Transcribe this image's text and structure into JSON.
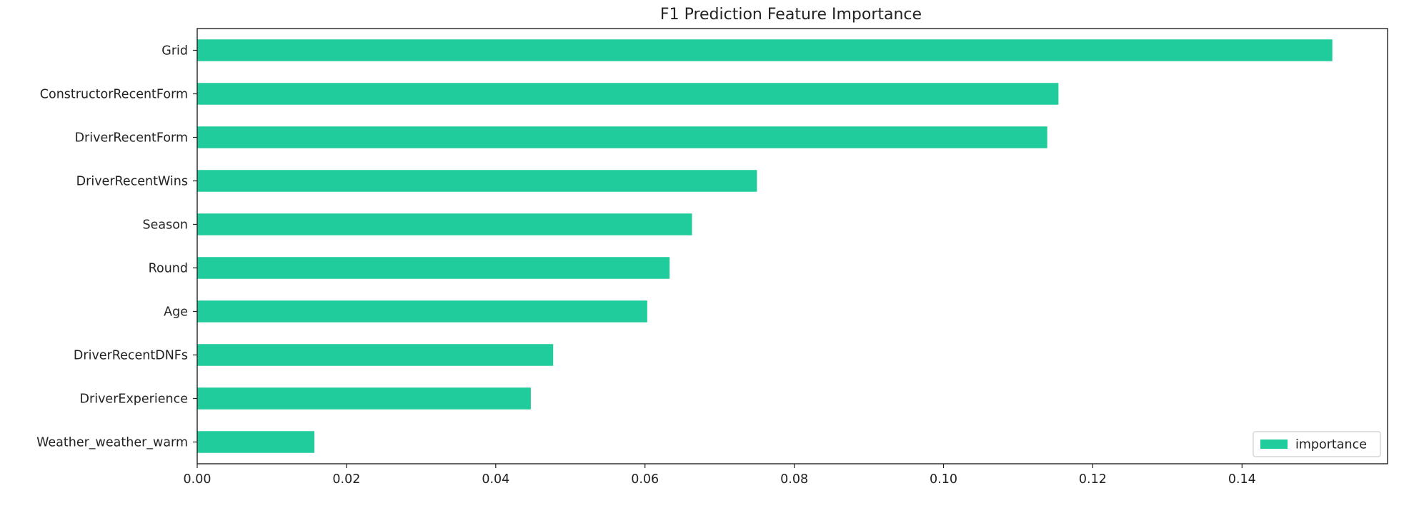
{
  "chart_data": {
    "type": "bar",
    "orientation": "horizontal",
    "title": "F1 Prediction Feature Importance",
    "xlabel": "",
    "ylabel": "",
    "categories": [
      "Grid",
      "ConstructorRecentForm",
      "DriverRecentForm",
      "DriverRecentWins",
      "Season",
      "Round",
      "Age",
      "DriverRecentDNFs",
      "DriverExperience",
      "Weather_weather_warm"
    ],
    "series": [
      {
        "name": "importance",
        "values": [
          0.1521,
          0.1154,
          0.1139,
          0.075,
          0.0663,
          0.0633,
          0.0603,
          0.0477,
          0.0447,
          0.0157
        ]
      }
    ],
    "xlim": [
      0.0,
      0.1595
    ],
    "xticks": [
      0.0,
      0.02,
      0.04,
      0.06,
      0.08,
      0.1,
      0.12,
      0.14
    ],
    "xtick_labels": [
      "0.00",
      "0.02",
      "0.04",
      "0.06",
      "0.08",
      "0.10",
      "0.12",
      "0.14"
    ],
    "grid": false,
    "legend": {
      "placement": "lower-right",
      "entries": [
        "importance"
      ]
    },
    "colors": {
      "bar": "#20cc9b",
      "axis": "#222222",
      "background": "#ffffff"
    }
  }
}
